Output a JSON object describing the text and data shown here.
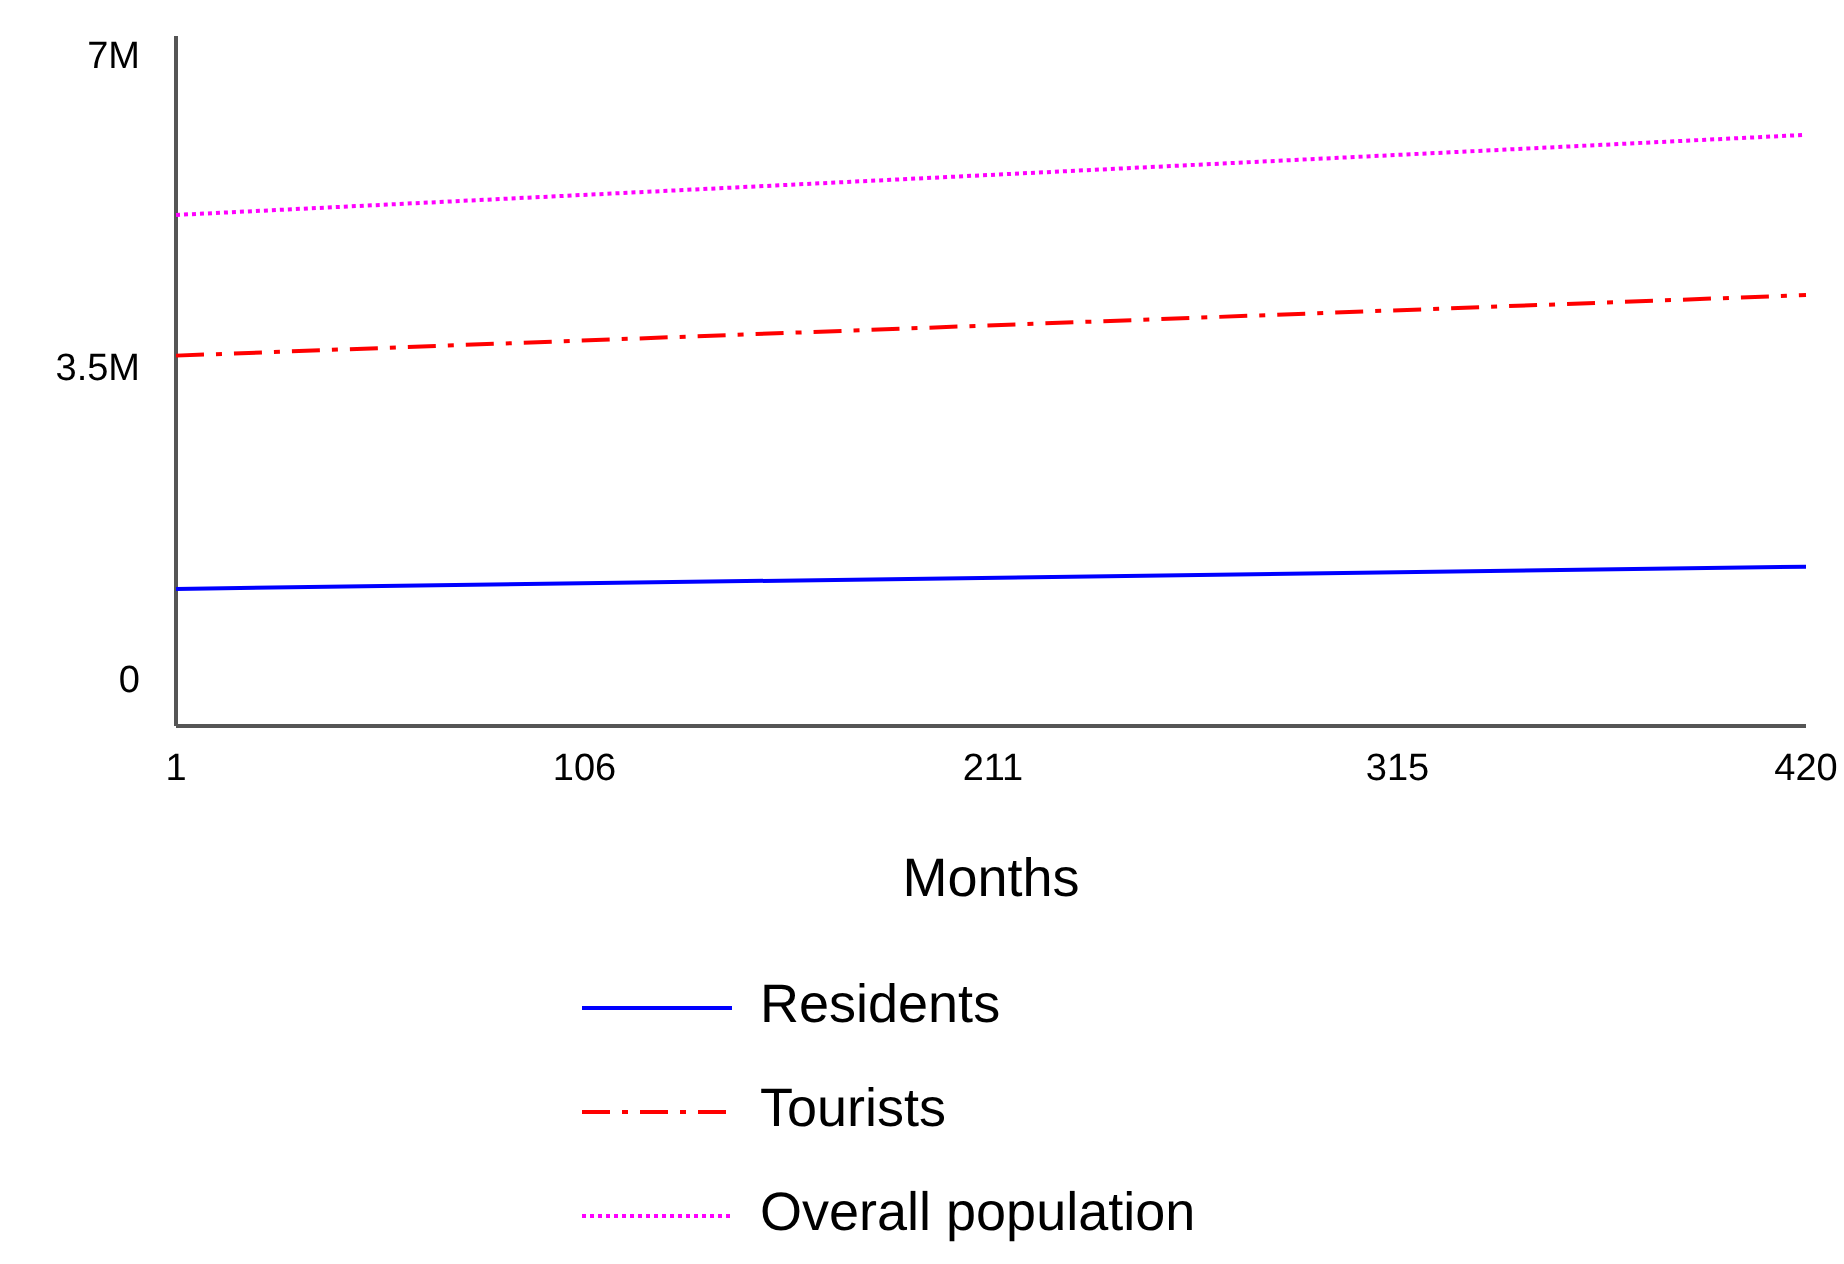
{
  "chart_data": {
    "type": "line",
    "xlabel": "Months",
    "x": [
      1,
      420
    ],
    "xlim": [
      1,
      420
    ],
    "xticks": [
      1,
      106,
      211,
      315,
      420
    ],
    "ylim": [
      -500000,
      7250000
    ],
    "yticks": [
      {
        "value": 0,
        "label": "0"
      },
      {
        "value": 3500000,
        "label": "3.5M"
      },
      {
        "value": 7000000,
        "label": "7M"
      }
    ],
    "grid": false,
    "legend": "bottom",
    "marker": "none",
    "series": [
      {
        "name": "Residents",
        "color": "#0000ff",
        "line_style": "solid",
        "values": [
          1040000,
          1290000
        ]
      },
      {
        "name": "Tourists",
        "color": "#ff0000",
        "line_style": "dashdot",
        "values": [
          3660000,
          4340000
        ]
      },
      {
        "name": "Overall population",
        "color": "#ff00ff",
        "line_style": "dotted",
        "values": [
          5240000,
          6140000
        ]
      }
    ]
  }
}
